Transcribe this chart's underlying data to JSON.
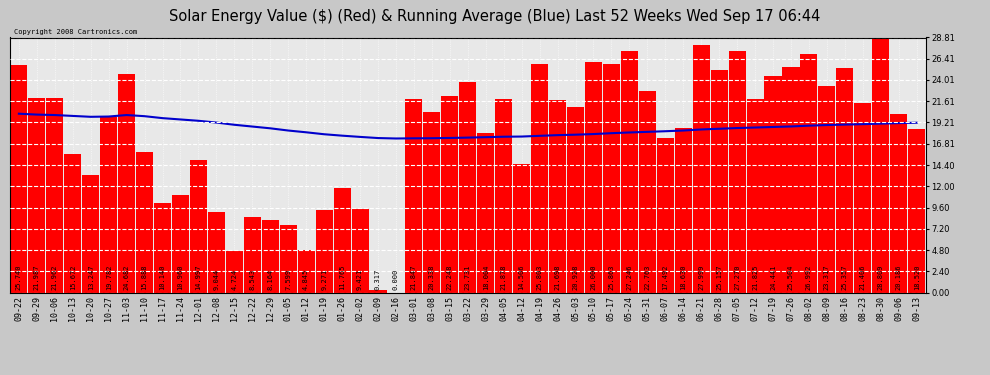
{
  "title": "Solar Energy Value ($) (Red) & Running Average (Blue) Last 52 Weeks Wed Sep 17 06:44",
  "copyright": "Copyright 2008 Cartronics.com",
  "bar_color": "#ff0000",
  "line_color": "#0000cc",
  "bg_color": "#c8c8c8",
  "plot_bg_color": "#e8e8e8",
  "grid_color": "#ffffff",
  "categories": [
    "09-22",
    "09-29",
    "10-06",
    "10-13",
    "10-20",
    "10-27",
    "11-03",
    "11-10",
    "11-17",
    "11-24",
    "12-01",
    "12-08",
    "12-15",
    "12-22",
    "12-29",
    "01-05",
    "01-12",
    "01-19",
    "01-26",
    "02-02",
    "02-09",
    "02-16",
    "03-01",
    "03-08",
    "03-15",
    "03-22",
    "03-29",
    "04-05",
    "04-12",
    "04-19",
    "04-26",
    "05-03",
    "05-10",
    "05-17",
    "05-24",
    "05-31",
    "06-07",
    "06-14",
    "06-21",
    "06-28",
    "07-05",
    "07-12",
    "07-19",
    "07-26",
    "08-02",
    "08-09",
    "08-16",
    "08-23",
    "08-30",
    "09-06",
    "09-13"
  ],
  "values": [
    25.74,
    21.987,
    21.962,
    15.672,
    13.247,
    19.782,
    24.682,
    15.888,
    10.14,
    10.96,
    14.997,
    9.044,
    4.724,
    8.543,
    8.164,
    7.599,
    4.845,
    9.271,
    11.765,
    9.421,
    0.317,
    0.0,
    21.847,
    20.338,
    22.248,
    23.731,
    18.004,
    21.878,
    14.506,
    25.803,
    21.698,
    20.928,
    26.0,
    25.863,
    27.246,
    22.763,
    17.492,
    18.63,
    27.999,
    25.157,
    27.27,
    21.825,
    24.441,
    25.504,
    26.992,
    23.317,
    25.357,
    21.406,
    28.809,
    20.186,
    18.52
  ],
  "running_avg": [
    20.2,
    20.1,
    20.05,
    19.95,
    19.85,
    19.88,
    20.05,
    19.92,
    19.7,
    19.55,
    19.4,
    19.2,
    18.95,
    18.75,
    18.55,
    18.3,
    18.1,
    17.88,
    17.72,
    17.58,
    17.45,
    17.4,
    17.42,
    17.43,
    17.46,
    17.5,
    17.55,
    17.6,
    17.62,
    17.7,
    17.78,
    17.83,
    17.9,
    18.0,
    18.08,
    18.15,
    18.22,
    18.3,
    18.42,
    18.5,
    18.58,
    18.64,
    18.7,
    18.76,
    18.85,
    18.92,
    18.97,
    19.02,
    19.08,
    19.14,
    19.18
  ],
  "ylim": [
    0,
    28.81
  ],
  "yticks": [
    0.0,
    2.4,
    4.8,
    7.2,
    9.6,
    12.0,
    14.4,
    16.81,
    19.21,
    21.61,
    24.01,
    26.41,
    28.81
  ],
  "title_fontsize": 10.5,
  "tick_fontsize": 6,
  "label_fontsize": 5
}
